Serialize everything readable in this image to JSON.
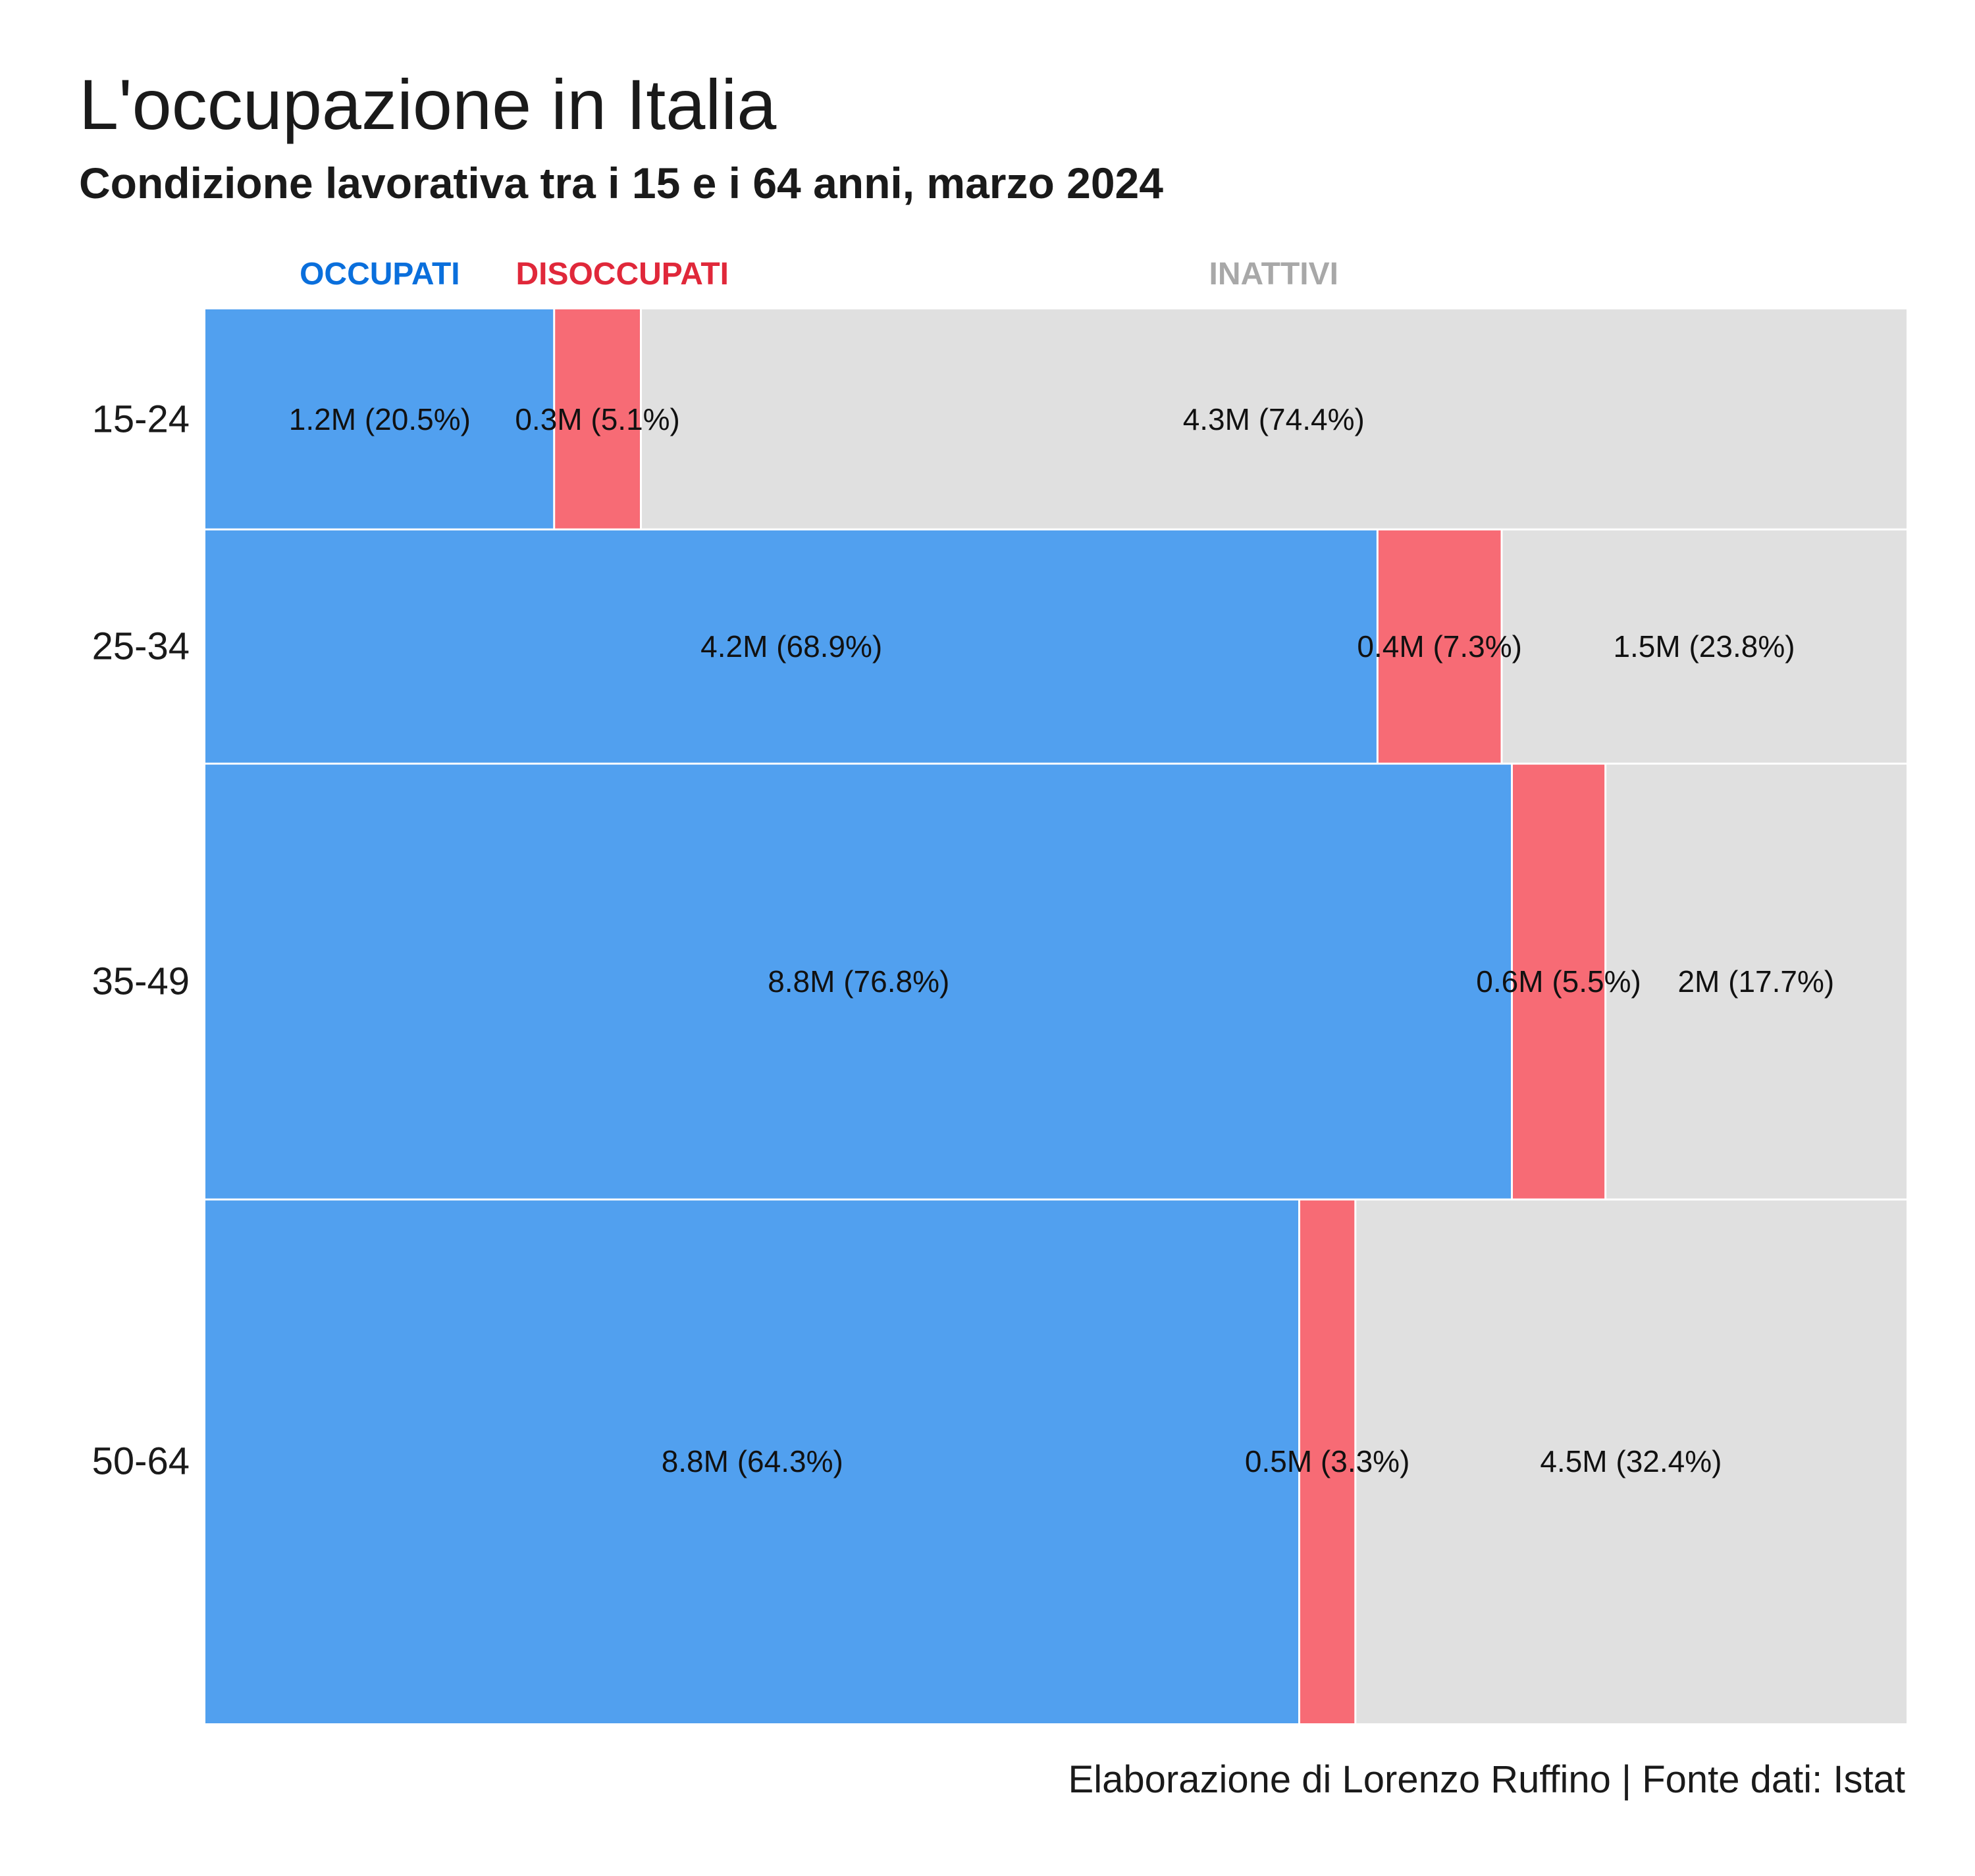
{
  "chart_data": {
    "type": "bar",
    "subtype": "mosaic",
    "title": "L'occupazione in Italia",
    "subtitle": "Condizione lavorativa tra i 15 e i 64 anni, marzo 2024",
    "caption": "Elaborazione di Lorenzo Ruffino | Fonte dati: Istat",
    "xlabel": "",
    "ylabel": "",
    "grid": false,
    "legend_position": "top",
    "categories": [
      "OCCUPATI",
      "DISOCCUPATI",
      "INATTIVI"
    ],
    "category_colors": {
      "OCCUPATI": "#0a6fdc",
      "DISOCCUPATI": "#e0283a",
      "INATTIVI": "#a8a8a8"
    },
    "fill_colors": [
      "#51a0ef",
      "#f76b75",
      "#e0e0e0"
    ],
    "rows": [
      {
        "age": "15-24",
        "values": [
          20.5,
          5.1,
          74.4
        ],
        "labels": [
          "1.2M (20.5%)",
          "0.3M (5.1%)",
          "4.3M (74.4%)"
        ],
        "population_share": 0.155
      },
      {
        "age": "25-34",
        "values": [
          68.9,
          7.3,
          23.8
        ],
        "labels": [
          "4.2M (68.9%)",
          "0.4M (7.3%)",
          "1.5M (23.8%)"
        ],
        "population_share": 0.165
      },
      {
        "age": "35-49",
        "values": [
          76.8,
          5.5,
          17.7
        ],
        "labels": [
          "8.8M (76.8%)",
          "0.6M (5.5%)",
          "2M (17.7%)"
        ],
        "population_share": 0.307
      },
      {
        "age": "50-64",
        "values": [
          64.3,
          3.3,
          32.4
        ],
        "labels": [
          "8.8M (64.3%)",
          "0.5M (3.3%)",
          "4.5M (32.4%)"
        ],
        "population_share": 0.369
      }
    ]
  }
}
